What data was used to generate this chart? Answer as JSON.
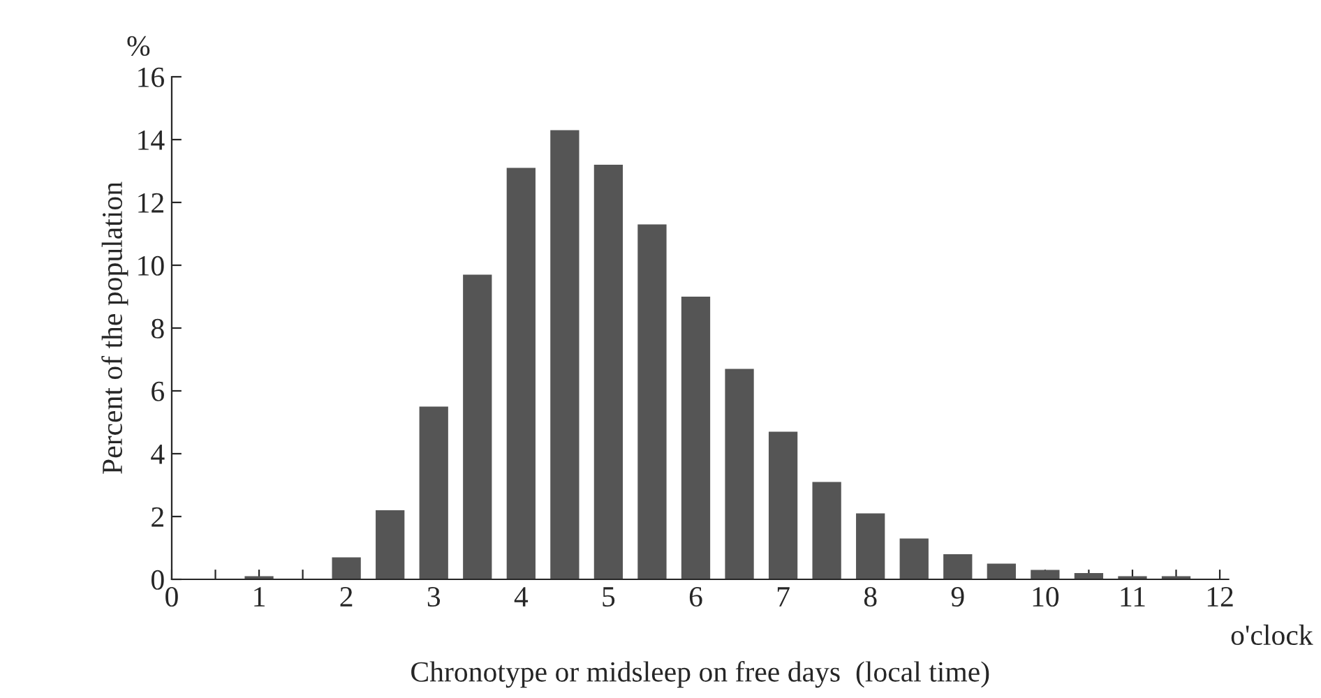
{
  "chart_data": {
    "type": "bar",
    "xlabel": "Chronotype or midsleep on free days  (local time)",
    "ylabel": "Percent of the population",
    "annotations": [
      "%",
      "o'clock"
    ],
    "x": [
      1,
      1.5,
      2,
      2.5,
      3,
      3.5,
      4,
      4.5,
      5,
      5.5,
      6,
      6.5,
      7,
      7.5,
      8,
      8.5,
      9,
      9.5,
      10,
      10.5,
      11,
      11.5
    ],
    "series": [
      {
        "color": "#555555",
        "values": [
          0.1,
          0,
          0.7,
          2.2,
          5.5,
          9.7,
          13.1,
          14.3,
          13.2,
          11.3,
          9.0,
          6.7,
          4.7,
          3.1,
          2.1,
          1.3,
          0.8,
          0.5,
          0.3,
          0.2,
          0.1,
          0.1
        ]
      }
    ],
    "xlim": [
      0,
      12.1
    ],
    "ylim": [
      0,
      16
    ],
    "xticks": [
      0,
      {
        "value": 0.5,
        "label": null
      },
      1,
      {
        "value": 1.5,
        "label": null
      },
      2,
      {
        "value": 2.5,
        "label": null
      },
      3,
      {
        "value": 3.5,
        "label": null
      },
      4,
      {
        "value": 4.5,
        "label": null
      },
      5,
      {
        "value": 5.5,
        "label": null
      },
      6,
      {
        "value": 6.5,
        "label": null
      },
      7,
      {
        "value": 7.5,
        "label": null
      },
      8,
      {
        "value": 8.5,
        "label": null
      },
      9,
      {
        "value": 9.5,
        "label": null
      },
      10,
      {
        "value": 10.5,
        "label": null
      },
      11,
      {
        "value": 11.5,
        "label": null
      },
      12
    ],
    "yticks": [
      0,
      2,
      4,
      6,
      8,
      10,
      12,
      14,
      16
    ],
    "grid": false,
    "legend": false
  }
}
